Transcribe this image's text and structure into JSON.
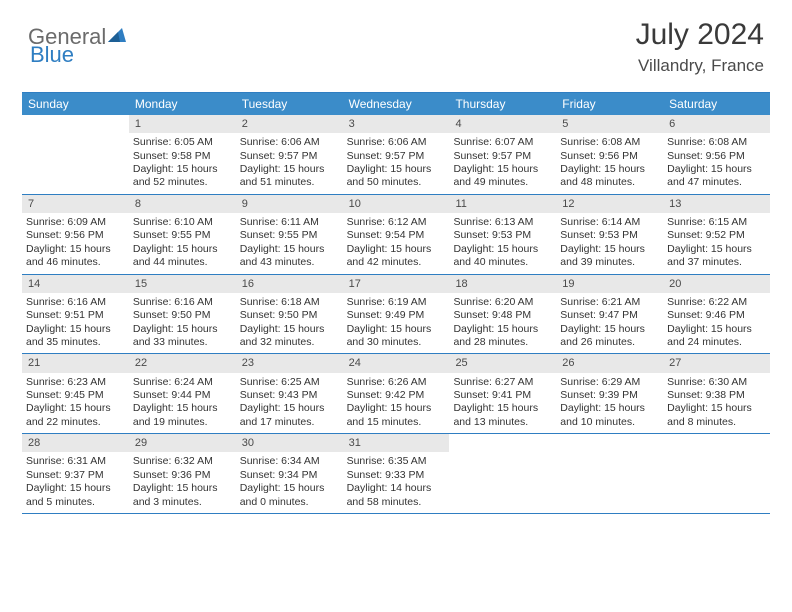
{
  "logo": {
    "word1": "General",
    "word2": "Blue"
  },
  "header": {
    "month_title": "July 2024",
    "location": "Villandry, France"
  },
  "colors": {
    "header_bg": "#3b8cc9",
    "rule": "#2f7ec2",
    "daynum_bg": "#e8e8e8",
    "text": "#333333",
    "logo_gray": "#6b6b6b",
    "logo_blue": "#2f7ec2"
  },
  "day_names": [
    "Sunday",
    "Monday",
    "Tuesday",
    "Wednesday",
    "Thursday",
    "Friday",
    "Saturday"
  ],
  "weeks": [
    [
      {
        "empty": true
      },
      {
        "day": "1",
        "sunrise": "6:05 AM",
        "sunset": "9:58 PM",
        "daylight": "15 hours and 52 minutes."
      },
      {
        "day": "2",
        "sunrise": "6:06 AM",
        "sunset": "9:57 PM",
        "daylight": "15 hours and 51 minutes."
      },
      {
        "day": "3",
        "sunrise": "6:06 AM",
        "sunset": "9:57 PM",
        "daylight": "15 hours and 50 minutes."
      },
      {
        "day": "4",
        "sunrise": "6:07 AM",
        "sunset": "9:57 PM",
        "daylight": "15 hours and 49 minutes."
      },
      {
        "day": "5",
        "sunrise": "6:08 AM",
        "sunset": "9:56 PM",
        "daylight": "15 hours and 48 minutes."
      },
      {
        "day": "6",
        "sunrise": "6:08 AM",
        "sunset": "9:56 PM",
        "daylight": "15 hours and 47 minutes."
      }
    ],
    [
      {
        "day": "7",
        "sunrise": "6:09 AM",
        "sunset": "9:56 PM",
        "daylight": "15 hours and 46 minutes."
      },
      {
        "day": "8",
        "sunrise": "6:10 AM",
        "sunset": "9:55 PM",
        "daylight": "15 hours and 44 minutes."
      },
      {
        "day": "9",
        "sunrise": "6:11 AM",
        "sunset": "9:55 PM",
        "daylight": "15 hours and 43 minutes."
      },
      {
        "day": "10",
        "sunrise": "6:12 AM",
        "sunset": "9:54 PM",
        "daylight": "15 hours and 42 minutes."
      },
      {
        "day": "11",
        "sunrise": "6:13 AM",
        "sunset": "9:53 PM",
        "daylight": "15 hours and 40 minutes."
      },
      {
        "day": "12",
        "sunrise": "6:14 AM",
        "sunset": "9:53 PM",
        "daylight": "15 hours and 39 minutes."
      },
      {
        "day": "13",
        "sunrise": "6:15 AM",
        "sunset": "9:52 PM",
        "daylight": "15 hours and 37 minutes."
      }
    ],
    [
      {
        "day": "14",
        "sunrise": "6:16 AM",
        "sunset": "9:51 PM",
        "daylight": "15 hours and 35 minutes."
      },
      {
        "day": "15",
        "sunrise": "6:16 AM",
        "sunset": "9:50 PM",
        "daylight": "15 hours and 33 minutes."
      },
      {
        "day": "16",
        "sunrise": "6:18 AM",
        "sunset": "9:50 PM",
        "daylight": "15 hours and 32 minutes."
      },
      {
        "day": "17",
        "sunrise": "6:19 AM",
        "sunset": "9:49 PM",
        "daylight": "15 hours and 30 minutes."
      },
      {
        "day": "18",
        "sunrise": "6:20 AM",
        "sunset": "9:48 PM",
        "daylight": "15 hours and 28 minutes."
      },
      {
        "day": "19",
        "sunrise": "6:21 AM",
        "sunset": "9:47 PM",
        "daylight": "15 hours and 26 minutes."
      },
      {
        "day": "20",
        "sunrise": "6:22 AM",
        "sunset": "9:46 PM",
        "daylight": "15 hours and 24 minutes."
      }
    ],
    [
      {
        "day": "21",
        "sunrise": "6:23 AM",
        "sunset": "9:45 PM",
        "daylight": "15 hours and 22 minutes."
      },
      {
        "day": "22",
        "sunrise": "6:24 AM",
        "sunset": "9:44 PM",
        "daylight": "15 hours and 19 minutes."
      },
      {
        "day": "23",
        "sunrise": "6:25 AM",
        "sunset": "9:43 PM",
        "daylight": "15 hours and 17 minutes."
      },
      {
        "day": "24",
        "sunrise": "6:26 AM",
        "sunset": "9:42 PM",
        "daylight": "15 hours and 15 minutes."
      },
      {
        "day": "25",
        "sunrise": "6:27 AM",
        "sunset": "9:41 PM",
        "daylight": "15 hours and 13 minutes."
      },
      {
        "day": "26",
        "sunrise": "6:29 AM",
        "sunset": "9:39 PM",
        "daylight": "15 hours and 10 minutes."
      },
      {
        "day": "27",
        "sunrise": "6:30 AM",
        "sunset": "9:38 PM",
        "daylight": "15 hours and 8 minutes."
      }
    ],
    [
      {
        "day": "28",
        "sunrise": "6:31 AM",
        "sunset": "9:37 PM",
        "daylight": "15 hours and 5 minutes."
      },
      {
        "day": "29",
        "sunrise": "6:32 AM",
        "sunset": "9:36 PM",
        "daylight": "15 hours and 3 minutes."
      },
      {
        "day": "30",
        "sunrise": "6:34 AM",
        "sunset": "9:34 PM",
        "daylight": "15 hours and 0 minutes."
      },
      {
        "day": "31",
        "sunrise": "6:35 AM",
        "sunset": "9:33 PM",
        "daylight": "14 hours and 58 minutes."
      },
      {
        "empty": true
      },
      {
        "empty": true
      },
      {
        "empty": true
      }
    ]
  ],
  "labels": {
    "sunrise": "Sunrise:",
    "sunset": "Sunset:",
    "daylight": "Daylight:"
  }
}
